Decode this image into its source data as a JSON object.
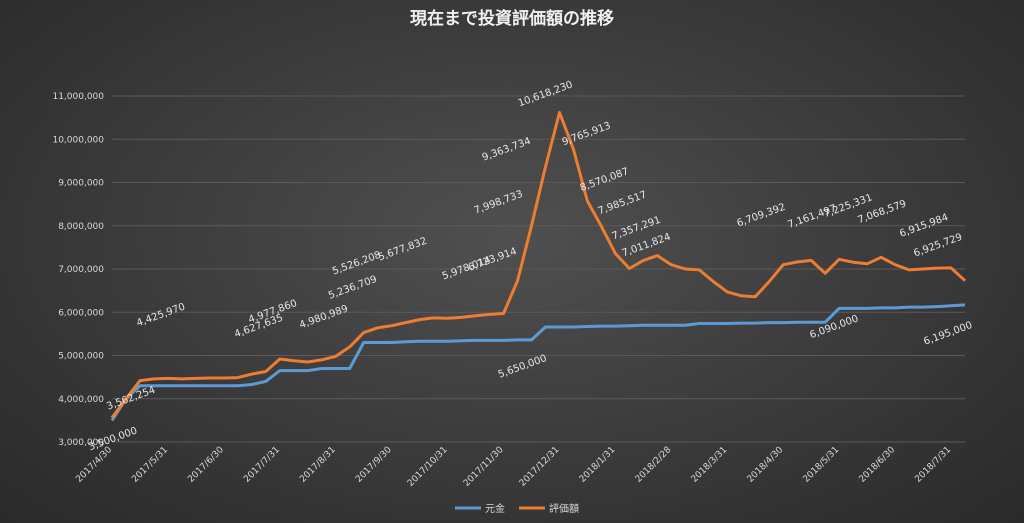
{
  "chart_data": {
    "type": "line",
    "title": "現在まで投資評価額の推移",
    "ylim": [
      3000000,
      11000000
    ],
    "y_ticks": [
      "3,000,000",
      "4,000,000",
      "5,000,000",
      "6,000,000",
      "7,000,000",
      "8,000,000",
      "9,000,000",
      "10,000,000",
      "11,000,000"
    ],
    "x_ticks": [
      "2017/4/30",
      "2017/5/31",
      "2017/6/30",
      "2017/7/31",
      "2017/8/31",
      "2017/9/30",
      "2017/10/31",
      "2017/11/30",
      "2017/12/31",
      "2018/1/31",
      "2018/2/28",
      "2018/3/31",
      "2018/4/30",
      "2018/5/31",
      "2018/6/30",
      "2018/7/31"
    ],
    "grid": true,
    "legend_position": "bottom",
    "x": [
      "2017/4/30",
      "2017/5/7",
      "2017/5/14",
      "2017/5/21",
      "2017/5/31",
      "2017/6/7",
      "2017/6/14",
      "2017/6/21",
      "2017/6/30",
      "2017/7/7",
      "2017/7/14",
      "2017/7/21",
      "2017/7/31",
      "2017/8/7",
      "2017/8/14",
      "2017/8/21",
      "2017/8/31",
      "2017/9/7",
      "2017/9/14",
      "2017/9/21",
      "2017/9/30",
      "2017/10/7",
      "2017/10/14",
      "2017/10/21",
      "2017/10/31",
      "2017/11/7",
      "2017/11/14",
      "2017/11/21",
      "2017/11/30",
      "2017/12/7",
      "2017/12/14",
      "2017/12/21",
      "2017/12/31",
      "2018/1/7",
      "2018/1/14",
      "2018/1/21",
      "2018/1/31",
      "2018/2/7",
      "2018/2/14",
      "2018/2/21",
      "2018/2/28",
      "2018/3/7",
      "2018/3/14",
      "2018/3/21",
      "2018/3/31",
      "2018/4/7",
      "2018/4/14",
      "2018/4/21",
      "2018/4/30",
      "2018/5/7",
      "2018/5/14",
      "2018/5/21",
      "2018/5/31",
      "2018/6/7",
      "2018/6/14",
      "2018/6/21",
      "2018/6/30",
      "2018/7/7",
      "2018/7/14",
      "2018/7/21",
      "2018/7/31",
      "2018/8/7"
    ],
    "series": [
      {
        "name": "元金",
        "color": "#5b9bd5",
        "values": [
          3500000,
          4000000,
          4300000,
          4300000,
          4300000,
          4300000,
          4300000,
          4300000,
          4300000,
          4300000,
          4330000,
          4400000,
          4650000,
          4650000,
          4650000,
          4700000,
          4700000,
          4700000,
          5300000,
          5300000,
          5300000,
          5320000,
          5330000,
          5330000,
          5330000,
          5340000,
          5350000,
          5350000,
          5350000,
          5360000,
          5360000,
          5660000,
          5660000,
          5660000,
          5670000,
          5680000,
          5680000,
          5690000,
          5700000,
          5700000,
          5700000,
          5700000,
          5740000,
          5740000,
          5740000,
          5750000,
          5750000,
          5760000,
          5760000,
          5770000,
          5770000,
          5770000,
          6090000,
          6090000,
          6090000,
          6100000,
          6100000,
          6120000,
          6120000,
          6130000,
          6150000,
          6170000
        ]
      },
      {
        "name": "評価額",
        "color": "#ed7d31",
        "values": [
          3562000,
          4000000,
          4420000,
          4460000,
          4470000,
          4460000,
          4470000,
          4480000,
          4480000,
          4490000,
          4570000,
          4630000,
          4920000,
          4880000,
          4850000,
          4900000,
          4980000,
          5200000,
          5530000,
          5640000,
          5690000,
          5760000,
          5830000,
          5870000,
          5860000,
          5880000,
          5920000,
          5950000,
          5970000,
          6724000,
          7999000,
          9364000,
          10618000,
          9766000,
          8570000,
          7986000,
          7357000,
          7011000,
          7200000,
          7310000,
          7100000,
          7000000,
          6980000,
          6710000,
          6470000,
          6380000,
          6360000,
          6709000,
          7100000,
          7161000,
          7200000,
          6900000,
          7225000,
          7158000,
          7120000,
          7270000,
          7100000,
          6980000,
          7000000,
          7020000,
          7025000,
          6730000
        ]
      }
    ],
    "data_labels": [
      {
        "text": "3,562,254"
      },
      {
        "text": "4,425,970"
      },
      {
        "text": "4,627,635"
      },
      {
        "text": "4,977,860"
      },
      {
        "text": "4,980,989"
      },
      {
        "text": "5,236,709"
      },
      {
        "text": "5,526,208"
      },
      {
        "text": "5,677,832"
      },
      {
        "text": "5,978,014"
      },
      {
        "text": "6,723,914"
      },
      {
        "text": "7,998,733"
      },
      {
        "text": "9,363,734"
      },
      {
        "text": "10,618,230"
      },
      {
        "text": "9,765,913"
      },
      {
        "text": "8,570,087"
      },
      {
        "text": "7,985,517"
      },
      {
        "text": "7,357,291"
      },
      {
        "text": "7,011,824"
      },
      {
        "text": "6,709,392"
      },
      {
        "text": "7,161,497"
      },
      {
        "text": "7,225,331"
      },
      {
        "text": "7,068,579"
      },
      {
        "text": "6,915,984"
      },
      {
        "text": "6,925,729"
      },
      {
        "text": "3,500,000"
      },
      {
        "text": "5,650,000"
      },
      {
        "text": "6,090,000"
      },
      {
        "text": "6,195,000"
      }
    ]
  }
}
